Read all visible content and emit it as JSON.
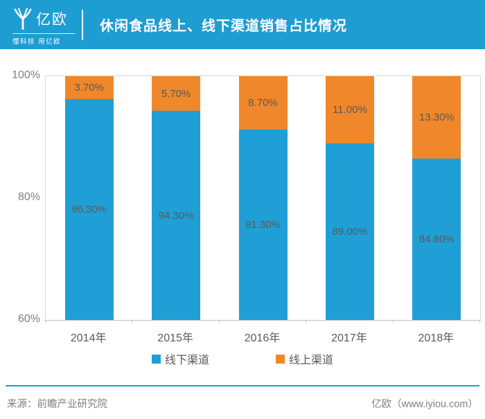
{
  "header": {
    "logo_text": "亿欧",
    "tagline": "懂科技 用亿欧",
    "title": "休闲食品线上、线下渠道销售占比情况"
  },
  "colors": {
    "header_bg": "#1E9DD2",
    "offline_blue": "#209FD6",
    "online_orange": "#F0872B",
    "label_gray": "#595959",
    "axis_gray": "#7F7F7F",
    "border_gray": "#D9D9D9"
  },
  "chart_data": {
    "type": "bar",
    "subtype": "stacked-100-percent",
    "title": "休闲食品线上、线下渠道销售占比情况",
    "categories": [
      "2014年",
      "2015年",
      "2016年",
      "2017年",
      "2018年"
    ],
    "series": [
      {
        "name": "线下渠道",
        "color_key": "offline_blue",
        "values": [
          96.3,
          94.3,
          91.3,
          89.0,
          84.8
        ],
        "labels": [
          "96.30%",
          "94.30%",
          "91.30%",
          "89.00%",
          "84.80%"
        ]
      },
      {
        "name": "线上渠道",
        "color_key": "online_orange",
        "values": [
          3.7,
          5.7,
          8.7,
          11.0,
          13.3
        ],
        "labels": [
          "3.70%",
          "5.70%",
          "8.70%",
          "11.00%",
          "13.30%"
        ]
      }
    ],
    "ylim": [
      60,
      100
    ],
    "yticks": [
      "100%",
      "80%",
      "60%"
    ],
    "grid": false,
    "legend_position": "bottom"
  },
  "footer": {
    "source": "来源：前瞻产业研究院",
    "brand": "亿欧（www.iyiou.com）"
  }
}
